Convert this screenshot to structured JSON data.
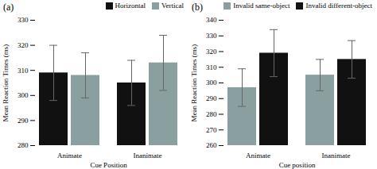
{
  "chart_data": [
    {
      "type": "bar",
      "title": "(a)",
      "xlabel": "Cue Position",
      "ylabel": "Mean Reaction Times (ms)",
      "categories": [
        "Animate",
        "Inanimate"
      ],
      "series": [
        {
          "name": "Horizontal",
          "color": "#111111",
          "values": [
            309,
            305
          ],
          "errors": [
            11,
            9
          ]
        },
        {
          "name": "Vertical",
          "color": "#8a9fa0",
          "values": [
            308,
            313
          ],
          "errors": [
            9,
            11
          ]
        }
      ],
      "ylim": [
        280,
        330
      ],
      "yticks": [
        280,
        290,
        300,
        310,
        320,
        330
      ],
      "legend": "upper right"
    },
    {
      "type": "bar",
      "title": "(b)",
      "xlabel": "Cue position",
      "ylabel": "Mean Reaction Times (ms)",
      "categories": [
        "Animate",
        "Inanimate"
      ],
      "series": [
        {
          "name": "Invalid same-object",
          "color": "#8a9fa0",
          "values": [
            297,
            305
          ],
          "errors": [
            12,
            10
          ]
        },
        {
          "name": "Invalid different-object",
          "color": "#111111",
          "values": [
            319,
            315
          ],
          "errors": [
            15,
            12
          ]
        }
      ],
      "ylim": [
        260,
        340
      ],
      "yticks": [
        260,
        270,
        280,
        290,
        300,
        310,
        320,
        330,
        340
      ],
      "legend": "upper right"
    }
  ]
}
